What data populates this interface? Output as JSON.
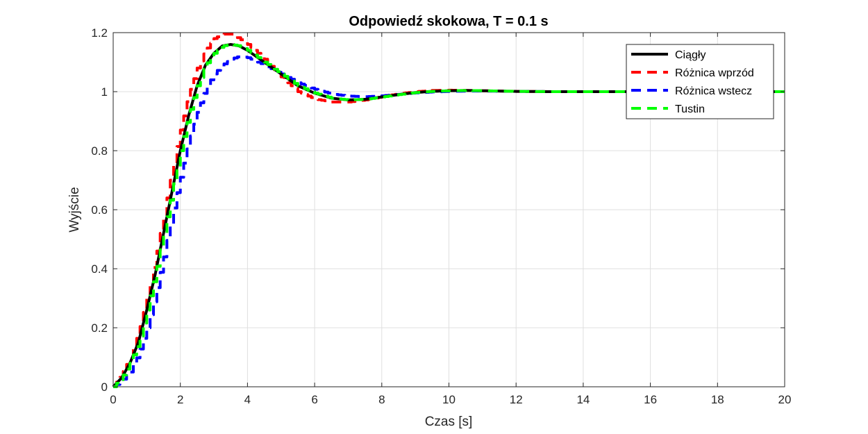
{
  "chart_data": {
    "type": "line",
    "title": "Odpowiedź skokowa, T = 0.1 s",
    "xlabel": "Czas [s]",
    "ylabel": "Wyjście",
    "xlim": [
      0,
      20
    ],
    "ylim": [
      0,
      1.2
    ],
    "grid": true,
    "legend_position": "top-right",
    "x_ticks": [
      0,
      2,
      4,
      6,
      8,
      10,
      12,
      14,
      16,
      18,
      20
    ],
    "x_tick_labels": [
      "0",
      "2",
      "4",
      "6",
      "8",
      "10",
      "12",
      "14",
      "16",
      "18",
      "20"
    ],
    "y_ticks": [
      0,
      0.2,
      0.4,
      0.6,
      0.8,
      1.0,
      1.2
    ],
    "y_tick_labels": [
      "0",
      "0.2",
      "0.4",
      "0.6",
      "0.8",
      "1",
      "1.2"
    ],
    "sample_time": 0.1,
    "series": [
      {
        "name": "Ciągły",
        "color": "#000000",
        "style": "solid",
        "stairs": false,
        "x": [
          0,
          0.25,
          0.5,
          0.75,
          1.0,
          1.25,
          1.5,
          1.75,
          2.0,
          2.25,
          2.5,
          2.75,
          3.0,
          3.25,
          3.5,
          3.75,
          4.0,
          4.5,
          5.0,
          5.5,
          6.0,
          6.5,
          7.0,
          7.5,
          8.0,
          8.5,
          9.0,
          9.5,
          10.0,
          10.5,
          11.0,
          12.0,
          13.0,
          14.0,
          16.0,
          18.0,
          20.0
        ],
        "values": [
          0,
          0.03,
          0.08,
          0.15,
          0.26,
          0.38,
          0.52,
          0.66,
          0.8,
          0.92,
          1.02,
          1.09,
          1.13,
          1.155,
          1.16,
          1.155,
          1.14,
          1.1,
          1.06,
          1.02,
          0.995,
          0.978,
          0.972,
          0.974,
          0.982,
          0.99,
          0.997,
          1.001,
          1.003,
          1.004,
          1.003,
          1.001,
          1.0,
          1.0,
          1.0,
          1.0,
          1.0
        ]
      },
      {
        "name": "Różnica wprzód",
        "color": "#ff0000",
        "style": "dashed",
        "stairs": true,
        "x": [
          0,
          0.25,
          0.5,
          0.75,
          1.0,
          1.25,
          1.5,
          1.75,
          2.0,
          2.25,
          2.5,
          2.75,
          3.0,
          3.25,
          3.5,
          3.75,
          4.0,
          4.5,
          5.0,
          5.5,
          6.0,
          6.5,
          7.0,
          7.5,
          8.0,
          8.5,
          9.0,
          9.5,
          10.0,
          10.5,
          11.0,
          12.0,
          13.0,
          14.0,
          16.0,
          18.0,
          20.0
        ],
        "values": [
          0,
          0.04,
          0.1,
          0.18,
          0.3,
          0.43,
          0.58,
          0.73,
          0.87,
          0.99,
          1.08,
          1.14,
          1.18,
          1.195,
          1.195,
          1.18,
          1.16,
          1.11,
          1.05,
          1.0,
          0.975,
          0.965,
          0.965,
          0.972,
          0.983,
          0.993,
          1.0,
          1.004,
          1.005,
          1.004,
          1.003,
          1.001,
          1.0,
          1.0,
          1.0,
          1.0,
          1.0
        ]
      },
      {
        "name": "Różnica wstecz",
        "color": "#0000ff",
        "style": "dashed",
        "stairs": true,
        "x": [
          0,
          0.25,
          0.5,
          0.75,
          1.0,
          1.25,
          1.5,
          1.75,
          2.0,
          2.25,
          2.5,
          2.75,
          3.0,
          3.25,
          3.5,
          3.75,
          4.0,
          4.5,
          5.0,
          5.5,
          6.0,
          6.5,
          7.0,
          7.5,
          8.0,
          8.5,
          9.0,
          9.5,
          10.0,
          10.5,
          11.0,
          12.0,
          13.0,
          14.0,
          16.0,
          18.0,
          20.0
        ],
        "values": [
          0,
          0.02,
          0.05,
          0.11,
          0.2,
          0.31,
          0.44,
          0.58,
          0.71,
          0.83,
          0.93,
          1.01,
          1.06,
          1.09,
          1.11,
          1.12,
          1.115,
          1.09,
          1.06,
          1.03,
          1.008,
          0.992,
          0.985,
          0.983,
          0.986,
          0.991,
          0.996,
          0.999,
          1.001,
          1.002,
          1.002,
          1.001,
          1.0,
          1.0,
          1.0,
          1.0,
          1.0
        ]
      },
      {
        "name": "Tustin",
        "color": "#00ff00",
        "style": "dashed",
        "stairs": true,
        "x": [
          0,
          0.25,
          0.5,
          0.75,
          1.0,
          1.25,
          1.5,
          1.75,
          2.0,
          2.25,
          2.5,
          2.75,
          3.0,
          3.25,
          3.5,
          3.75,
          4.0,
          4.5,
          5.0,
          5.5,
          6.0,
          6.5,
          7.0,
          7.5,
          8.0,
          8.5,
          9.0,
          9.5,
          10.0,
          10.5,
          11.0,
          12.0,
          13.0,
          14.0,
          16.0,
          18.0,
          20.0
        ],
        "values": [
          0,
          0.03,
          0.08,
          0.15,
          0.26,
          0.38,
          0.52,
          0.66,
          0.8,
          0.92,
          1.02,
          1.09,
          1.13,
          1.155,
          1.16,
          1.155,
          1.14,
          1.1,
          1.06,
          1.02,
          0.995,
          0.978,
          0.972,
          0.974,
          0.982,
          0.99,
          0.997,
          1.001,
          1.003,
          1.004,
          1.003,
          1.001,
          1.0,
          1.0,
          1.0,
          1.0,
          1.0
        ]
      }
    ]
  }
}
